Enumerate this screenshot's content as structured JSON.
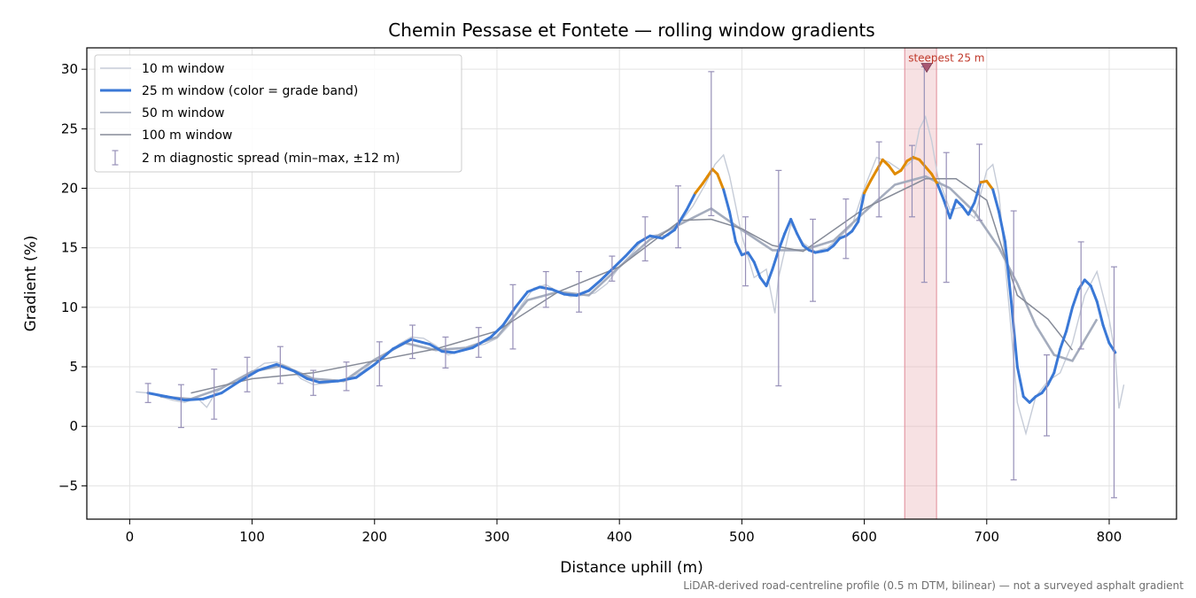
{
  "chart_data": {
    "type": "line",
    "title": "Chemin Pessase et Fontete — rolling window gradients",
    "xlabel": "Distance uphill (m)",
    "ylabel": "Gradient (%)",
    "xlim": [
      -35,
      855
    ],
    "ylim": [
      -7.8,
      31.8
    ],
    "xticks": [
      0,
      100,
      200,
      300,
      400,
      500,
      600,
      700,
      800
    ],
    "yticks": [
      -5,
      0,
      5,
      10,
      15,
      20,
      25,
      30
    ],
    "ytick_labels": [
      "−5",
      "0",
      "5",
      "10",
      "15",
      "20",
      "25",
      "30"
    ],
    "grid": true,
    "legend_position": "upper left",
    "footnote": "LiDAR-derived road-centreline profile (0.5 m DTM, bilinear) — not a surveyed asphalt gradient",
    "grade_band_colors": {
      "below_20": "#3a78d6",
      "20_to_25": "#e08a00"
    },
    "highlight": {
      "x_range": [
        633,
        659
      ],
      "label": "steepest 25 m",
      "marker": [
        651,
        30.2
      ],
      "color": "#e8a8b0"
    },
    "series": [
      {
        "name": "10 m window",
        "color": "#c6ccd8",
        "x": [
          5,
          15,
          25,
          35,
          45,
          55,
          63,
          70,
          80,
          90,
          100,
          110,
          120,
          130,
          140,
          150,
          160,
          170,
          180,
          190,
          200,
          210,
          220,
          230,
          240,
          250,
          260,
          270,
          280,
          290,
          300,
          310,
          320,
          330,
          340,
          350,
          360,
          370,
          380,
          390,
          400,
          410,
          420,
          430,
          440,
          450,
          460,
          470,
          478,
          485,
          490,
          500,
          510,
          520,
          527,
          530,
          540,
          550,
          560,
          570,
          580,
          590,
          600,
          610,
          620,
          630,
          640,
          645,
          650,
          655,
          660,
          670,
          680,
          690,
          700,
          705,
          710,
          720,
          725,
          732,
          740,
          750,
          760,
          770,
          780,
          790,
          800,
          805,
          808,
          812
        ],
        "y": [
          2.9,
          2.8,
          2.5,
          2.2,
          2.0,
          2.4,
          1.6,
          2.8,
          3.5,
          4.0,
          4.6,
          5.3,
          5.4,
          5.0,
          4.0,
          3.5,
          3.6,
          3.8,
          4.1,
          4.6,
          5.6,
          6.0,
          6.9,
          7.5,
          7.4,
          6.8,
          6.0,
          6.3,
          6.7,
          6.9,
          7.4,
          8.5,
          10.2,
          11.6,
          11.9,
          11.3,
          10.9,
          11.0,
          11.2,
          12.0,
          13.4,
          14.5,
          15.8,
          16.1,
          16.0,
          17.2,
          18.5,
          20.3,
          22.0,
          22.8,
          21.0,
          16.0,
          12.5,
          13.2,
          9.5,
          12.5,
          17.0,
          15.4,
          14.7,
          15.0,
          15.9,
          16.9,
          20.0,
          22.6,
          22.2,
          21.5,
          22.4,
          25.0,
          26.0,
          24.0,
          21.0,
          18.2,
          18.4,
          17.5,
          21.5,
          22.0,
          19.5,
          8.0,
          2.0,
          -0.6,
          2.5,
          3.8,
          4.5,
          7.0,
          11.0,
          13.0,
          9.0,
          6.0,
          1.5,
          3.5
        ]
      },
      {
        "name": "25 m window (color = grade band)",
        "color": "#3a78d6",
        "x": [
          15,
          30,
          45,
          60,
          75,
          90,
          105,
          120,
          135,
          145,
          155,
          170,
          185,
          200,
          215,
          230,
          245,
          255,
          265,
          280,
          295,
          305,
          315,
          325,
          335,
          345,
          355,
          365,
          375,
          385,
          395,
          405,
          415,
          425,
          435,
          445,
          455,
          462,
          468,
          472,
          476,
          480,
          485,
          490,
          495,
          500,
          505,
          510,
          515,
          520,
          525,
          530,
          535,
          540,
          545,
          550,
          555,
          560,
          565,
          570,
          575,
          580,
          585,
          590,
          595,
          600,
          605,
          610,
          615,
          620,
          625,
          630,
          635,
          640,
          645,
          650,
          655,
          660,
          665,
          670,
          675,
          680,
          685,
          690,
          695,
          700,
          705,
          710,
          715,
          720,
          725,
          730,
          735,
          740,
          745,
          750,
          755,
          760,
          765,
          770,
          775,
          780,
          785,
          790,
          795,
          800,
          805
        ],
        "y": [
          2.8,
          2.5,
          2.2,
          2.3,
          2.8,
          3.8,
          4.7,
          5.2,
          4.6,
          4.0,
          3.7,
          3.8,
          4.1,
          5.2,
          6.5,
          7.3,
          6.9,
          6.3,
          6.2,
          6.6,
          7.5,
          8.5,
          10.0,
          11.3,
          11.7,
          11.5,
          11.1,
          11.0,
          11.4,
          12.3,
          13.3,
          14.3,
          15.4,
          16.0,
          15.8,
          16.5,
          18.2,
          19.6,
          20.4,
          21.0,
          21.6,
          21.2,
          19.9,
          18.0,
          15.5,
          14.4,
          14.6,
          13.8,
          12.5,
          11.8,
          13.2,
          14.8,
          16.2,
          17.4,
          16.2,
          15.2,
          14.8,
          14.6,
          14.7,
          14.8,
          15.2,
          15.8,
          16.0,
          16.4,
          17.2,
          19.6,
          20.6,
          21.5,
          22.4,
          21.9,
          21.2,
          21.5,
          22.3,
          22.6,
          22.4,
          21.8,
          21.2,
          20.3,
          19.0,
          17.5,
          19.0,
          18.5,
          17.8,
          18.8,
          20.5,
          20.6,
          19.9,
          18.0,
          15.5,
          10.5,
          5.0,
          2.5,
          2.0,
          2.5,
          2.8,
          3.5,
          4.5,
          6.5,
          8.0,
          10.0,
          11.5,
          12.3,
          11.8,
          10.5,
          8.5,
          7.0,
          6.2
        ]
      },
      {
        "name": "50 m window",
        "color": "#a4acbd",
        "x": [
          25,
          50,
          75,
          100,
          125,
          150,
          175,
          200,
          225,
          250,
          275,
          300,
          325,
          350,
          375,
          400,
          425,
          450,
          475,
          500,
          525,
          550,
          575,
          600,
          625,
          650,
          670,
          690,
          710,
          725,
          740,
          755,
          770,
          790
        ],
        "y": [
          2.5,
          2.3,
          3.2,
          4.6,
          5.1,
          4.0,
          3.8,
          5.6,
          7.0,
          6.4,
          6.6,
          7.5,
          10.6,
          11.3,
          11.0,
          13.4,
          15.7,
          17.0,
          18.3,
          16.5,
          14.8,
          14.8,
          15.6,
          18.0,
          20.3,
          21.0,
          20.0,
          18.0,
          15.0,
          12.0,
          8.5,
          6.0,
          5.5,
          9.0
        ]
      },
      {
        "name": "100 m window",
        "color": "#868b98",
        "x": [
          50,
          100,
          150,
          200,
          250,
          300,
          350,
          400,
          450,
          475,
          500,
          525,
          550,
          600,
          650,
          675,
          700,
          725,
          750,
          770
        ],
        "y": [
          2.8,
          4.0,
          4.5,
          5.5,
          6.5,
          8.0,
          11.3,
          13.4,
          17.3,
          17.4,
          16.6,
          15.2,
          14.7,
          18.3,
          20.8,
          20.8,
          19.0,
          11.0,
          9.0,
          6.4
        ]
      },
      {
        "name": "2 m diagnostic spread (min–max, ±12 m)",
        "color": "#9790b8",
        "x": [
          15,
          42,
          69,
          96,
          123,
          150,
          177,
          204,
          231,
          258,
          285,
          313,
          340,
          367,
          394,
          421,
          448,
          475,
          503,
          530,
          558,
          585,
          612,
          639,
          649,
          667,
          694,
          722,
          749,
          777,
          804
        ],
        "ymin": [
          2.0,
          -0.1,
          0.6,
          2.9,
          3.6,
          2.6,
          3.0,
          3.4,
          5.7,
          4.9,
          5.8,
          6.5,
          10.0,
          9.6,
          12.2,
          13.9,
          15.0,
          17.7,
          11.8,
          3.4,
          10.5,
          14.1,
          17.6,
          17.6,
          12.1,
          12.1,
          17.3,
          -4.5,
          -0.8,
          6.5,
          -6.0
        ],
        "ymax": [
          3.6,
          3.5,
          4.8,
          5.8,
          6.7,
          4.7,
          5.4,
          7.1,
          8.5,
          7.5,
          8.3,
          11.9,
          13.0,
          13.0,
          14.3,
          17.6,
          20.2,
          29.8,
          17.6,
          21.5,
          17.4,
          19.1,
          23.9,
          23.6,
          30.2,
          23.0,
          23.7,
          18.1,
          6.0,
          15.5,
          13.4
        ]
      }
    ]
  }
}
